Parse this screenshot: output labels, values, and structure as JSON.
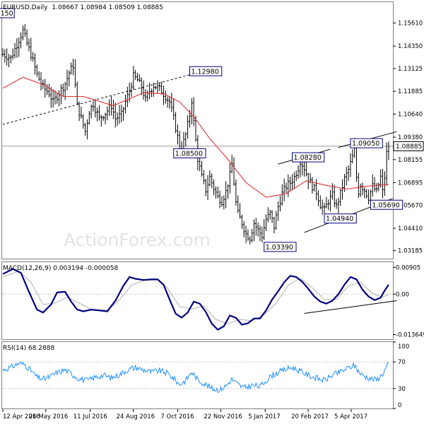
{
  "chart_data": [
    {
      "type": "ohlc",
      "title": "EURUSD,Daily",
      "ohlc_text": "1.08667 1.08984 1.08509 1.08885",
      "watermark": "ActionForex.com",
      "ylim": [
        1.0275,
        1.1675
      ],
      "y_ticks": [
        "1.15610",
        "1.14350",
        "1.13125",
        "1.11885",
        "1.10640",
        "1.09380",
        "1.08155",
        "1.06895",
        "1.05670",
        "1.04410",
        "1.03185"
      ],
      "current_price_label": "1.08885",
      "current_price": 1.08885,
      "price_labels": [
        {
          "text": "150",
          "day": 0.2,
          "price": 1.1615
        },
        {
          "text": "1.12980",
          "day": 93,
          "price": 1.1298
        },
        {
          "text": "1.08500",
          "day": 85,
          "price": 1.085
        },
        {
          "text": "1.08280",
          "day": 144,
          "price": 1.0828
        },
        {
          "text": "1.09050",
          "day": 173,
          "price": 1.0905
        },
        {
          "text": "1.05690",
          "day": 183,
          "price": 1.0569
        },
        {
          "text": "1.04940",
          "day": 160,
          "price": 1.0494
        },
        {
          "text": "1.03390",
          "day": 130,
          "price": 1.0339
        }
      ],
      "close_anchors": [
        [
          0,
          1.139
        ],
        [
          4,
          1.137
        ],
        [
          8,
          1.147
        ],
        [
          10,
          1.152
        ],
        [
          12,
          1.145
        ],
        [
          14,
          1.139
        ],
        [
          17,
          1.128
        ],
        [
          20,
          1.121
        ],
        [
          23,
          1.118
        ],
        [
          25,
          1.113
        ],
        [
          28,
          1.118
        ],
        [
          31,
          1.123
        ],
        [
          33,
          1.129
        ],
        [
          35,
          1.133
        ],
        [
          37,
          1.111
        ],
        [
          39,
          1.104
        ],
        [
          41,
          1.097
        ],
        [
          43,
          1.108
        ],
        [
          45,
          1.112
        ],
        [
          48,
          1.104
        ],
        [
          51,
          1.107
        ],
        [
          54,
          1.111
        ],
        [
          56,
          1.104
        ],
        [
          59,
          1.106
        ],
        [
          61,
          1.113
        ],
        [
          63,
          1.119
        ],
        [
          65,
          1.127
        ],
        [
          67,
          1.125
        ],
        [
          69,
          1.121
        ],
        [
          71,
          1.114
        ],
        [
          73,
          1.119
        ],
        [
          75,
          1.122
        ],
        [
          77,
          1.121
        ],
        [
          79,
          1.119
        ],
        [
          81,
          1.116
        ],
        [
          83,
          1.113
        ],
        [
          85,
          1.104
        ],
        [
          87,
          1.094
        ],
        [
          88,
          1.087
        ],
        [
          89,
          1.088
        ],
        [
          91,
          1.095
        ],
        [
          93,
          1.106
        ],
        [
          94,
          1.114
        ],
        [
          95,
          1.102
        ],
        [
          96,
          1.092
        ],
        [
          97,
          1.082
        ],
        [
          99,
          1.072
        ],
        [
          101,
          1.065
        ],
        [
          103,
          1.072
        ],
        [
          105,
          1.066
        ],
        [
          107,
          1.061
        ],
        [
          109,
          1.059
        ],
        [
          111,
          1.064
        ],
        [
          113,
          1.073
        ],
        [
          114,
          1.079
        ],
        [
          115,
          1.069
        ],
        [
          116,
          1.058
        ],
        [
          117,
          1.052
        ],
        [
          119,
          1.047
        ],
        [
          121,
          1.041
        ],
        [
          123,
          1.039
        ],
        [
          125,
          1.047
        ],
        [
          127,
          1.043
        ],
        [
          129,
          1.04
        ],
        [
          131,
          1.049
        ],
        [
          133,
          1.052
        ],
        [
          135,
          1.045
        ],
        [
          137,
          1.056
        ],
        [
          139,
          1.063
        ],
        [
          141,
          1.067
        ],
        [
          143,
          1.069
        ],
        [
          145,
          1.072
        ],
        [
          147,
          1.077
        ],
        [
          148,
          1.081
        ],
        [
          150,
          1.077
        ],
        [
          152,
          1.071
        ],
        [
          154,
          1.067
        ],
        [
          156,
          1.064
        ],
        [
          158,
          1.057
        ],
        [
          160,
          1.054
        ],
        [
          162,
          1.059
        ],
        [
          164,
          1.062
        ],
        [
          166,
          1.056
        ],
        [
          168,
          1.063
        ],
        [
          170,
          1.071
        ],
        [
          172,
          1.076
        ],
        [
          174,
          1.083
        ],
        [
          175,
          1.087
        ],
        [
          176,
          1.072
        ],
        [
          177,
          1.064
        ],
        [
          178,
          1.068
        ],
        [
          180,
          1.065
        ],
        [
          182,
          1.061
        ],
        [
          184,
          1.067
        ],
        [
          186,
          1.064
        ],
        [
          188,
          1.072
        ],
        [
          189,
          1.064
        ],
        [
          190,
          1.072
        ],
        [
          191,
          1.085
        ],
        [
          192,
          1.0888
        ]
      ],
      "ma_anchors": [
        [
          0,
          1.1205
        ],
        [
          10,
          1.1265
        ],
        [
          20,
          1.1225
        ],
        [
          30,
          1.116
        ],
        [
          40,
          1.116
        ],
        [
          55,
          1.111
        ],
        [
          70,
          1.118
        ],
        [
          80,
          1.1175
        ],
        [
          88,
          1.113
        ],
        [
          95,
          1.105
        ],
        [
          103,
          1.093
        ],
        [
          111,
          1.083
        ],
        [
          121,
          1.069
        ],
        [
          131,
          1.061
        ],
        [
          141,
          1.063
        ],
        [
          151,
          1.07
        ],
        [
          161,
          1.0675
        ],
        [
          171,
          1.0655
        ],
        [
          181,
          1.067
        ],
        [
          192,
          1.068
        ]
      ],
      "trend_lines": [
        {
          "from": [
            0,
            1.1008
          ],
          "to": [
            96,
            1.1287
          ],
          "style": "dashed"
        },
        {
          "from": [
            137,
            1.0791
          ],
          "to": [
            163,
            1.0872
          ],
          "style": "solid"
        },
        {
          "from": [
            167,
            1.0882
          ],
          "to": [
            196,
            1.0968
          ],
          "style": "solid"
        },
        {
          "from": [
            150,
            1.0418
          ],
          "to": [
            194,
            1.0603
          ],
          "style": "solid"
        }
      ]
    },
    {
      "type": "line",
      "title": "MACD(12,26,9) 0.003194 -0.000058",
      "y_ticks": [
        "0.00905",
        "0.00",
        "-0.013649"
      ],
      "ylim": [
        -0.0152,
        0.0108
      ],
      "current_label": "0.00",
      "series": [
        {
          "name": "MACD",
          "anchors": [
            [
              0,
              0.0068
            ],
            [
              5,
              0.0085
            ],
            [
              9,
              0.0072
            ],
            [
              13,
              0.0008
            ],
            [
              17,
              -0.0052
            ],
            [
              20,
              -0.0062
            ],
            [
              24,
              -0.0035
            ],
            [
              27,
              0.0006
            ],
            [
              31,
              0.0008
            ],
            [
              34,
              -0.0025
            ],
            [
              37,
              -0.0052
            ],
            [
              40,
              -0.0058
            ],
            [
              44,
              -0.0052
            ],
            [
              48,
              -0.0055
            ],
            [
              52,
              -0.0058
            ],
            [
              56,
              -0.0022
            ],
            [
              60,
              0.0028
            ],
            [
              63,
              0.0058
            ],
            [
              66,
              0.0052
            ],
            [
              70,
              0.0048
            ],
            [
              74,
              0.005
            ],
            [
              77,
              0.005
            ],
            [
              80,
              0.0032
            ],
            [
              83,
              -0.0018
            ],
            [
              86,
              -0.0066
            ],
            [
              89,
              -0.0079
            ],
            [
              92,
              -0.0062
            ],
            [
              95,
              -0.0025
            ],
            [
              98,
              -0.0032
            ],
            [
              101,
              -0.006
            ],
            [
              104,
              -0.01
            ],
            [
              107,
              -0.012
            ],
            [
              110,
              -0.0108
            ],
            [
              113,
              -0.0072
            ],
            [
              116,
              -0.008
            ],
            [
              119,
              -0.0103
            ],
            [
              122,
              -0.0098
            ],
            [
              125,
              -0.0082
            ],
            [
              128,
              -0.0082
            ],
            [
              131,
              -0.0055
            ],
            [
              134,
              -0.0018
            ],
            [
              137,
              0.001
            ],
            [
              140,
              0.004
            ],
            [
              143,
              0.0062
            ],
            [
              146,
              0.0058
            ],
            [
              149,
              0.0042
            ],
            [
              152,
              0.0018
            ],
            [
              155,
              -0.0008
            ],
            [
              158,
              -0.0025
            ],
            [
              161,
              -0.0032
            ],
            [
              164,
              -0.0022
            ],
            [
              167,
              0.0
            ],
            [
              170,
              0.0032
            ],
            [
              173,
              0.0058
            ],
            [
              176,
              0.005
            ],
            [
              179,
              0.0015
            ],
            [
              182,
              -0.0008
            ],
            [
              185,
              -0.002
            ],
            [
              188,
              -0.0012
            ],
            [
              190,
              0.0012
            ],
            [
              192,
              0.0032
            ]
          ]
        },
        {
          "name": "Signal",
          "anchors": [
            [
              0,
              0.0058
            ],
            [
              8,
              0.0078
            ],
            [
              14,
              0.004
            ],
            [
              20,
              -0.0035
            ],
            [
              26,
              -0.003
            ],
            [
              32,
              -0.001
            ],
            [
              38,
              -0.003
            ],
            [
              44,
              -0.0052
            ],
            [
              52,
              -0.0054
            ],
            [
              58,
              -0.002
            ],
            [
              64,
              0.003
            ],
            [
              70,
              0.0046
            ],
            [
              77,
              0.0048
            ],
            [
              82,
              0.002
            ],
            [
              88,
              -0.0042
            ],
            [
              94,
              -0.005
            ],
            [
              100,
              -0.004
            ],
            [
              106,
              -0.0085
            ],
            [
              112,
              -0.01
            ],
            [
              118,
              -0.0085
            ],
            [
              124,
              -0.009
            ],
            [
              130,
              -0.007
            ],
            [
              136,
              -0.003
            ],
            [
              142,
              0.003
            ],
            [
              148,
              0.0054
            ],
            [
              154,
              0.0022
            ],
            [
              160,
              -0.0018
            ],
            [
              166,
              -0.0018
            ],
            [
              172,
              0.0028
            ],
            [
              178,
              0.004
            ],
            [
              184,
              0.0002
            ],
            [
              189,
              -0.001
            ],
            [
              192,
              -0.0001
            ]
          ]
        }
      ],
      "trend_lines": [
        {
          "from": [
            150,
            -0.0065
          ],
          "to": [
            196,
            -0.0022
          ]
        }
      ]
    },
    {
      "type": "line",
      "title": "RSI(14) 68.2888",
      "y_ticks": [
        "100",
        "70",
        "30",
        "0"
      ],
      "ylim": [
        0,
        100
      ],
      "levels": [
        70,
        30
      ],
      "series": [
        {
          "name": "RSI",
          "anchors": [
            [
              0,
              58
            ],
            [
              4,
              62
            ],
            [
              8,
              68
            ],
            [
              11,
              66
            ],
            [
              14,
              57
            ],
            [
              17,
              47
            ],
            [
              20,
              44
            ],
            [
              23,
              47
            ],
            [
              27,
              54
            ],
            [
              31,
              58
            ],
            [
              34,
              52
            ],
            [
              38,
              45
            ],
            [
              42,
              42
            ],
            [
              46,
              47
            ],
            [
              50,
              50
            ],
            [
              54,
              46
            ],
            [
              58,
              51
            ],
            [
              62,
              58
            ],
            [
              66,
              62
            ],
            [
              70,
              58
            ],
            [
              74,
              55
            ],
            [
              78,
              57
            ],
            [
              82,
              53
            ],
            [
              85,
              45
            ],
            [
              88,
              36
            ],
            [
              91,
              42
            ],
            [
              94,
              55
            ],
            [
              97,
              43
            ],
            [
              100,
              38
            ],
            [
              104,
              30
            ],
            [
              108,
              28
            ],
            [
              111,
              34
            ],
            [
              114,
              44
            ],
            [
              117,
              36
            ],
            [
              120,
              31
            ],
            [
              124,
              35
            ],
            [
              128,
              33
            ],
            [
              131,
              42
            ],
            [
              134,
              50
            ],
            [
              137,
              54
            ],
            [
              140,
              58
            ],
            [
              144,
              62
            ],
            [
              148,
              56
            ],
            [
              152,
              50
            ],
            [
              156,
              46
            ],
            [
              160,
              42
            ],
            [
              164,
              50
            ],
            [
              168,
              55
            ],
            [
              172,
              61
            ],
            [
              175,
              65
            ],
            [
              178,
              52
            ],
            [
              182,
              46
            ],
            [
              186,
              43
            ],
            [
              189,
              52
            ],
            [
              192,
              68
            ]
          ]
        }
      ]
    }
  ],
  "x_axis": {
    "tick_labels": [
      "12 Apr 2016",
      "26 May 2016",
      "11 Jul 2016",
      "24 Aug 2016",
      "7 Oct 2016",
      "22 Nov 2016",
      "5 Jan 2017",
      "20 Feb 2017",
      "5 Apr 2017"
    ],
    "tick_positions_days": [
      0,
      31,
      63,
      94,
      126,
      157,
      189,
      220,
      251
    ]
  }
}
